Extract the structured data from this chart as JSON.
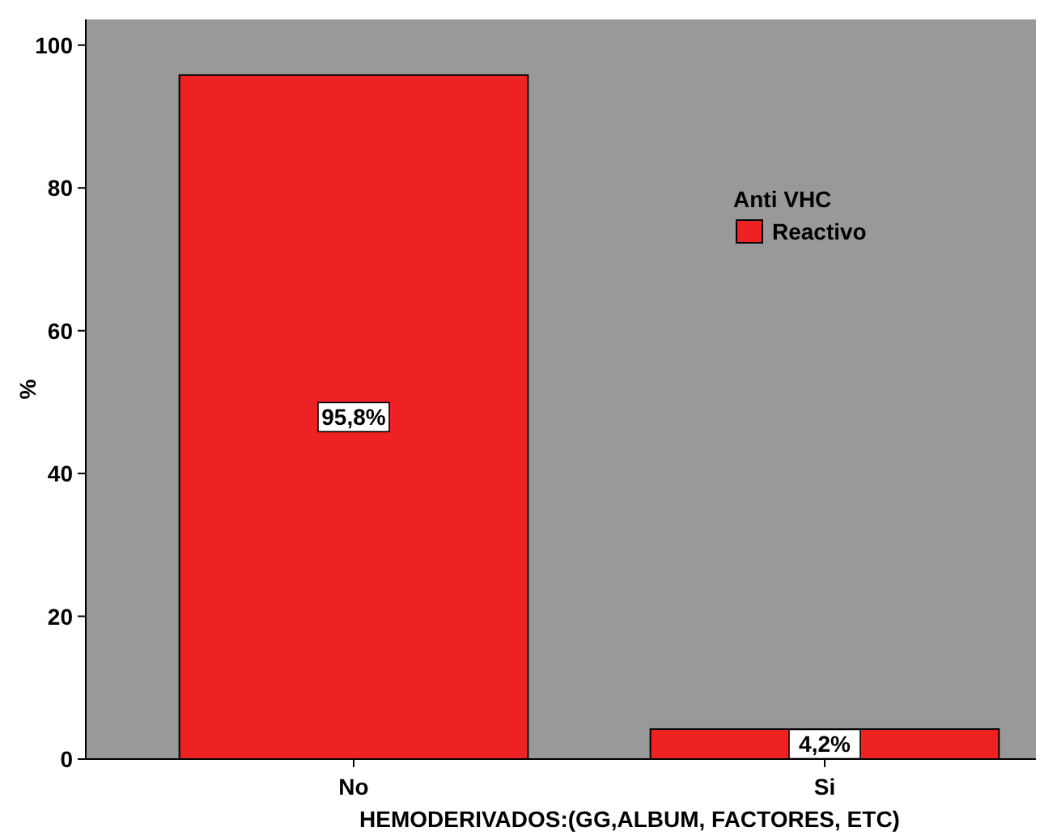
{
  "chart_data": {
    "type": "bar",
    "xlabel": "HEMODERIVADOS:(GG,ALBUM, FACTORES, ETC)",
    "ylabel": "%",
    "legend_title": "Anti VHC",
    "categories": [
      "No",
      "Si"
    ],
    "series": [
      {
        "name": "Reactivo",
        "color": "#ee2222",
        "values": [
          95.8,
          4.2
        ],
        "value_labels": [
          "95,8%",
          "4,2%"
        ]
      }
    ],
    "ylim": [
      0,
      103.6
    ],
    "yticks": [
      0,
      20,
      40,
      60,
      80,
      100
    ],
    "legend": "top right",
    "grid": false
  }
}
